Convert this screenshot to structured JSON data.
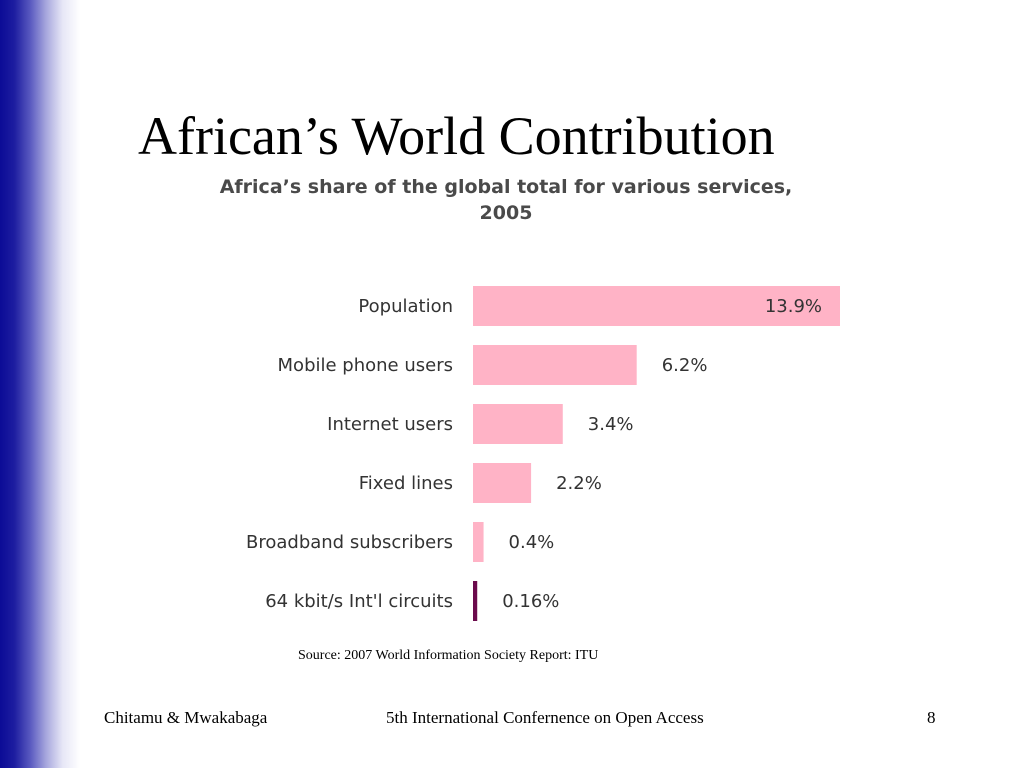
{
  "slide": {
    "title": "African’s World Contribution",
    "source": "Source: 2007 World Information Society Report: ITU",
    "footer": {
      "authors": "Chitamu & Mwakabaga",
      "conference": "5th International Confernence on Open Access",
      "page_number": "8"
    }
  },
  "colors": {
    "side_bar": "#0b0b96",
    "bar_default": "#ffb3c6",
    "bar_highlight": "#6b0a4c"
  },
  "chart_data": {
    "type": "bar",
    "orientation": "horizontal",
    "title_lines": [
      "Africa’s share of the global total for various services,",
      "2005"
    ],
    "categories": [
      "Population",
      "Mobile phone users",
      "Internet users",
      "Fixed lines",
      "Broadband subscribers",
      "64 kbit/s Int'l circuits"
    ],
    "values": [
      13.9,
      6.2,
      3.4,
      2.2,
      0.4,
      0.16
    ],
    "value_labels": [
      "13.9%",
      "6.2%",
      "3.4%",
      "2.2%",
      "0.4%",
      "0.16%"
    ],
    "bar_colors": [
      "#ffb3c6",
      "#ffb3c6",
      "#ffb3c6",
      "#ffb3c6",
      "#ffb3c6",
      "#6b0a4c"
    ],
    "unit": "%",
    "xlim": [
      0,
      13.9
    ],
    "grid": false,
    "legend": "none"
  }
}
